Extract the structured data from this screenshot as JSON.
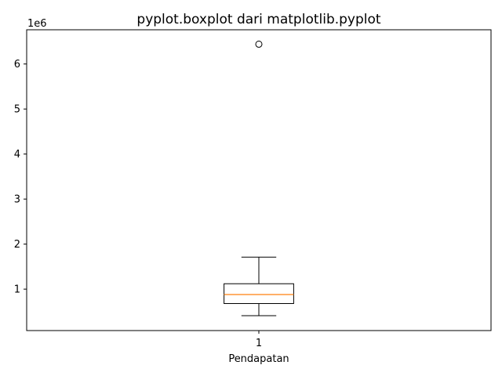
{
  "chart_data": {
    "type": "boxplot",
    "title": "pyplot.boxplot dari matplotlib.pyplot",
    "xlabel": "Pendapatan",
    "ylabel": "",
    "y_offset_label": "1e6",
    "categories": [
      "1"
    ],
    "yticks": [
      1,
      2,
      3,
      4,
      5,
      6
    ],
    "ylim": [
      0.08,
      6.76
    ],
    "boxes": [
      {
        "category": "1",
        "whisker_low": 0.41,
        "q1": 0.68,
        "median": 0.88,
        "q3": 1.12,
        "whisker_high": 1.71,
        "outliers": [
          6.44
        ]
      }
    ],
    "grid": false,
    "colors": {
      "median": "#ff7f0e",
      "box": "#000000"
    }
  }
}
